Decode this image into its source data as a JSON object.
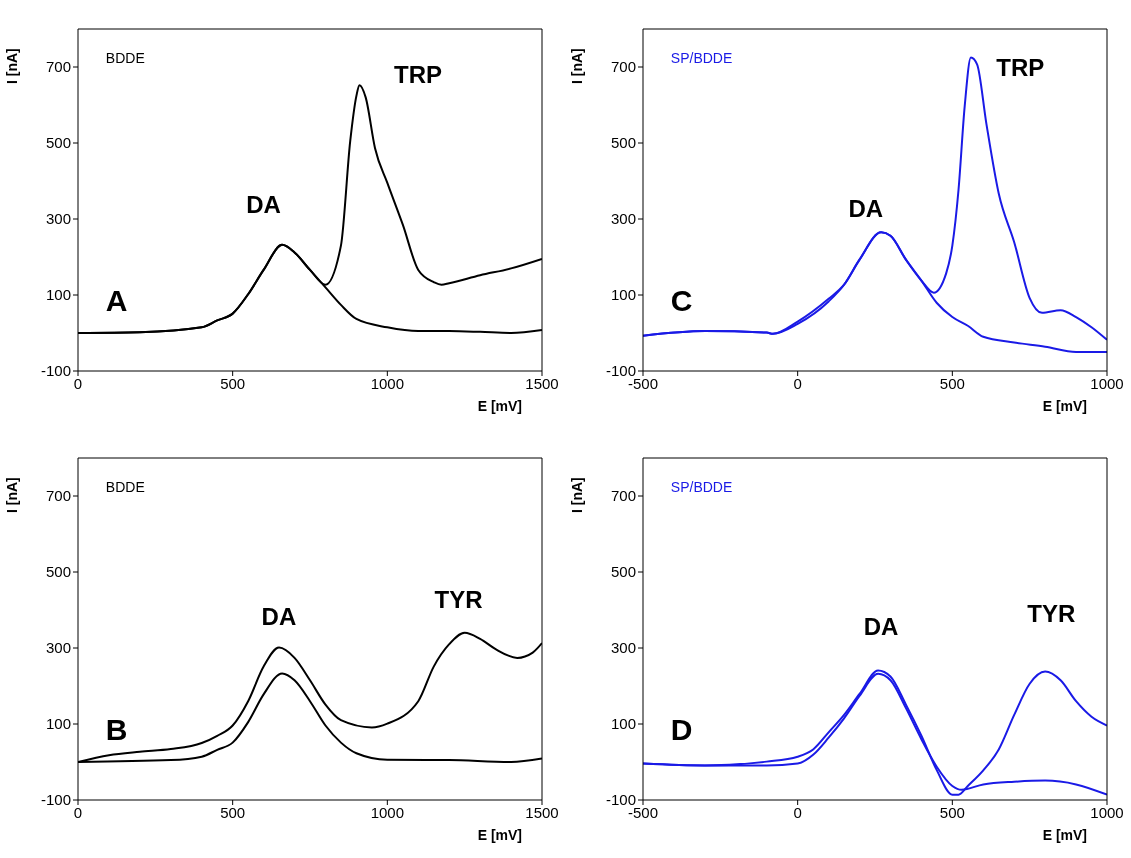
{
  "chart_data": [
    {
      "type": "line",
      "xlabel": "E [mV]",
      "ylabel": "I [nA]",
      "xlim": [
        0,
        1500
      ],
      "xticks": [
        0,
        500,
        1000,
        1500
      ],
      "ylim": [
        -100,
        800
      ],
      "yticks": [
        -100,
        100,
        300,
        500,
        700
      ],
      "annotations": [
        "BDDE",
        "A",
        "DA",
        "TRP"
      ],
      "series": [
        {
          "color": "#000000",
          "x": [
            0,
            200,
            400,
            450,
            500,
            550,
            600,
            660,
            700,
            750,
            800,
            850,
            900,
            1000,
            1100,
            1200,
            1300,
            1400,
            1500
          ],
          "values": [
            0,
            2,
            15,
            33,
            51,
            102,
            166,
            232,
            212,
            166,
            120,
            74,
            37,
            15,
            5,
            5,
            3,
            0,
            8
          ]
        },
        {
          "color": "#000000",
          "x": [
            0,
            200,
            400,
            450,
            500,
            550,
            600,
            660,
            700,
            750,
            800,
            850,
            880,
            900,
            910,
            930,
            960,
            1000,
            1050,
            1100,
            1150,
            1175,
            1200,
            1300,
            1400,
            1500
          ],
          "values": [
            0,
            2,
            15,
            33,
            51,
            102,
            166,
            232,
            212,
            166,
            127,
            230,
            505,
            624,
            652,
            620,
            487,
            395,
            285,
            166,
            134,
            127,
            131,
            152,
            170,
            195
          ]
        }
      ]
    },
    {
      "type": "line",
      "xlabel": "E [mV]",
      "ylabel": "I [nA]",
      "xlim": [
        -500,
        1000
      ],
      "xticks": [
        -500,
        0,
        500,
        1000
      ],
      "ylim": [
        -100,
        800
      ],
      "yticks": [
        -100,
        100,
        300,
        500,
        700
      ],
      "annotations": [
        "SP/BDDE",
        "C",
        "DA",
        "TRP"
      ],
      "series": [
        {
          "color": "#1a1ae6",
          "x": [
            -500,
            -300,
            -100,
            -80,
            0,
            100,
            150,
            200,
            270,
            300,
            350,
            400,
            450,
            500,
            550,
            600,
            700,
            800,
            900,
            1000
          ],
          "values": [
            -7,
            5,
            1,
            -2,
            24,
            83,
            127,
            193,
            265,
            256,
            193,
            138,
            79,
            42,
            19,
            -10,
            -25,
            -36,
            -50,
            -50
          ]
        },
        {
          "color": "#1a1ae6",
          "x": [
            -500,
            -300,
            -100,
            -80,
            0,
            100,
            150,
            200,
            270,
            300,
            350,
            400,
            440,
            480,
            500,
            520,
            540,
            560,
            580,
            610,
            650,
            700,
            750,
            790,
            850,
            900,
            950,
            1000
          ],
          "values": [
            -7,
            5,
            1,
            -2,
            30,
            90,
            127,
            193,
            265,
            256,
            193,
            138,
            106,
            157,
            230,
            377,
            597,
            725,
            707,
            551,
            367,
            239,
            92,
            53,
            60,
            42,
            15,
            -18
          ]
        }
      ]
    },
    {
      "type": "line",
      "xlabel": "E [mV]",
      "ylabel": "I [nA]",
      "xlim": [
        0,
        1500
      ],
      "xticks": [
        0,
        500,
        1000,
        1500
      ],
      "ylim": [
        -100,
        800
      ],
      "yticks": [
        -100,
        100,
        300,
        500,
        700
      ],
      "annotations": [
        "BDDE",
        "B",
        "DA",
        "TYR"
      ],
      "series": [
        {
          "color": "#000000",
          "x": [
            0,
            300,
            400,
            450,
            500,
            550,
            600,
            660,
            700,
            750,
            800,
            850,
            900,
            1000,
            1200,
            1400,
            1500
          ],
          "values": [
            0,
            5,
            14,
            32,
            51,
            105,
            178,
            233,
            215,
            160,
            96,
            51,
            23,
            6,
            5,
            0,
            9
          ]
        },
        {
          "color": "#000000",
          "x": [
            0,
            100,
            200,
            300,
            400,
            450,
            500,
            550,
            600,
            650,
            700,
            750,
            800,
            850,
            950,
            1000,
            1100,
            1150,
            1200,
            1250,
            1300,
            1350,
            1420,
            1470,
            1500
          ],
          "values": [
            0,
            18,
            27,
            34,
            50,
            69,
            96,
            160,
            251,
            301,
            274,
            215,
            151,
            110,
            91,
            101,
            160,
            251,
            310,
            340,
            324,
            297,
            274,
            288,
            313
          ]
        }
      ]
    },
    {
      "type": "line",
      "xlabel": "E [mV]",
      "ylabel": "I [nA]",
      "xlim": [
        -500,
        1000
      ],
      "xticks": [
        -500,
        0,
        500,
        1000
      ],
      "ylim": [
        -100,
        800
      ],
      "yticks": [
        -100,
        100,
        300,
        500,
        700
      ],
      "annotations": [
        "SP/BDDE",
        "D",
        "DA",
        "TYR"
      ],
      "series": [
        {
          "color": "#1a1ae6",
          "x": [
            -500,
            -300,
            -100,
            0,
            50,
            100,
            150,
            200,
            260,
            300,
            350,
            400,
            450,
            500,
            520,
            550,
            600,
            650,
            700,
            750,
            800,
            850,
            900,
            950,
            1000
          ],
          "values": [
            -4,
            -9,
            1,
            14,
            33,
            78,
            124,
            179,
            241,
            225,
            151,
            69,
            -22,
            -86,
            -86,
            -63,
            -22,
            33,
            124,
            206,
            238,
            215,
            160,
            119,
            96
          ]
        },
        {
          "color": "#1a1ae6",
          "x": [
            -500,
            -300,
            -100,
            0,
            50,
            100,
            150,
            200,
            260,
            300,
            350,
            400,
            450,
            500,
            530,
            600,
            700,
            800,
            900,
            1000
          ],
          "values": [
            -4,
            -9,
            -9,
            -4,
            19,
            64,
            115,
            174,
            232,
            215,
            142,
            60,
            -13,
            -63,
            -73,
            -59,
            -52,
            -49,
            -59,
            -86
          ]
        }
      ]
    }
  ]
}
